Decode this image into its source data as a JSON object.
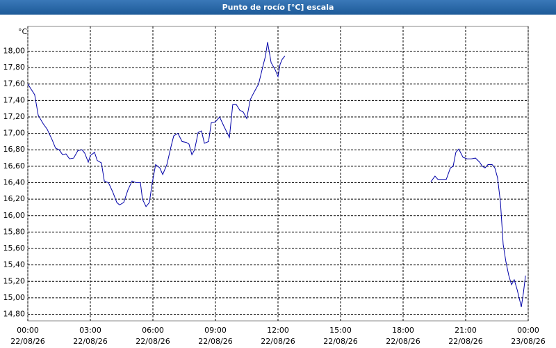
{
  "chart_data": {
    "type": "line",
    "title": "Punto de rocío [°C] escala",
    "y_unit": "°C",
    "xlim": [
      0,
      24
    ],
    "ylim": [
      14.72,
      18.3
    ],
    "grid": true,
    "xticks": [
      {
        "value": 0,
        "label": [
          "00:00",
          "22/08/26"
        ]
      },
      {
        "value": 3,
        "label": [
          "03:00",
          "22/08/26"
        ]
      },
      {
        "value": 6,
        "label": [
          "06:00",
          "22/08/26"
        ]
      },
      {
        "value": 9,
        "label": [
          "09:00",
          "22/08/26"
        ]
      },
      {
        "value": 12,
        "label": [
          "12:00",
          "22/08/26"
        ]
      },
      {
        "value": 15,
        "label": [
          "15:00",
          "22/08/26"
        ]
      },
      {
        "value": 18,
        "label": [
          "18:00",
          "22/08/26"
        ]
      },
      {
        "value": 21,
        "label": [
          "21:00",
          "22/08/26"
        ]
      },
      {
        "value": 24,
        "label": [
          "00:00",
          "23/08/26"
        ]
      }
    ],
    "yticks": [
      {
        "value": 14.8,
        "label": "14,80"
      },
      {
        "value": 15.0,
        "label": "15,00"
      },
      {
        "value": 15.2,
        "label": "15,20"
      },
      {
        "value": 15.4,
        "label": "15,40"
      },
      {
        "value": 15.6,
        "label": "15,60"
      },
      {
        "value": 15.8,
        "label": "15,80"
      },
      {
        "value": 16.0,
        "label": "16,00"
      },
      {
        "value": 16.2,
        "label": "16,20"
      },
      {
        "value": 16.4,
        "label": "16,40"
      },
      {
        "value": 16.6,
        "label": "16,60"
      },
      {
        "value": 16.8,
        "label": "16,80"
      },
      {
        "value": 17.0,
        "label": "17,00"
      },
      {
        "value": 17.2,
        "label": "17,20"
      },
      {
        "value": 17.4,
        "label": "17,40"
      },
      {
        "value": 17.6,
        "label": "17,60"
      },
      {
        "value": 17.8,
        "label": "17,80"
      },
      {
        "value": 18.0,
        "label": "18,00"
      }
    ],
    "color": "#0000a8",
    "x": [
      0,
      0.33,
      0.5,
      0.73,
      0.93,
      1.17,
      1.33,
      1.5,
      1.67,
      1.83,
      2.0,
      2.2,
      2.4,
      2.6,
      2.73,
      2.9,
      3.0,
      3.2,
      3.33,
      3.53,
      3.67,
      3.87,
      4.07,
      4.27,
      4.4,
      4.6,
      4.8,
      5.0,
      5.2,
      5.4,
      5.5,
      5.67,
      5.83,
      5.97,
      6.13,
      6.33,
      6.47,
      6.67,
      6.87,
      7.0,
      7.2,
      7.4,
      7.6,
      7.73,
      7.87,
      8.0,
      8.17,
      8.33,
      8.47,
      8.67,
      8.8,
      9.0,
      9.2,
      9.4,
      9.67,
      9.83,
      10.0,
      10.17,
      10.33,
      10.5,
      10.67,
      10.83,
      11.07,
      11.27,
      11.4,
      11.5,
      11.67,
      11.87,
      12.0,
      12.1,
      12.2,
      12.33,
      null,
      19.33,
      19.53,
      19.67,
      19.87,
      20.07,
      20.27,
      20.4,
      20.53,
      20.67,
      20.87,
      21.07,
      21.27,
      21.47,
      21.67,
      21.8,
      21.93,
      22.07,
      22.27,
      22.4,
      22.53,
      22.67,
      22.8,
      22.93,
      23.07,
      23.2,
      23.33,
      23.47,
      23.67,
      23.77,
      23.87
    ],
    "values": [
      17.6,
      17.47,
      17.22,
      17.12,
      17.05,
      16.92,
      16.82,
      16.8,
      16.74,
      16.75,
      16.69,
      16.7,
      16.79,
      16.8,
      16.76,
      16.65,
      16.73,
      16.77,
      16.67,
      16.64,
      16.42,
      16.4,
      16.29,
      16.16,
      16.13,
      16.16,
      16.31,
      16.42,
      16.4,
      16.4,
      16.2,
      16.11,
      16.16,
      16.4,
      16.62,
      16.58,
      16.5,
      16.62,
      16.84,
      16.97,
      17.0,
      16.9,
      16.89,
      16.87,
      16.74,
      16.8,
      17.01,
      17.03,
      16.88,
      16.9,
      17.13,
      17.14,
      17.2,
      17.09,
      16.95,
      17.35,
      17.35,
      17.28,
      17.26,
      17.18,
      17.41,
      17.49,
      17.6,
      17.81,
      17.94,
      18.11,
      17.86,
      17.77,
      17.69,
      17.84,
      17.9,
      17.94,
      null,
      16.41,
      16.48,
      16.44,
      16.44,
      16.44,
      16.58,
      16.6,
      16.77,
      16.81,
      16.71,
      16.69,
      16.69,
      16.7,
      16.65,
      16.6,
      16.58,
      16.62,
      16.62,
      16.58,
      16.46,
      16.16,
      15.65,
      15.44,
      15.27,
      15.16,
      15.22,
      15.1,
      14.89,
      15.06,
      15.27
    ]
  }
}
